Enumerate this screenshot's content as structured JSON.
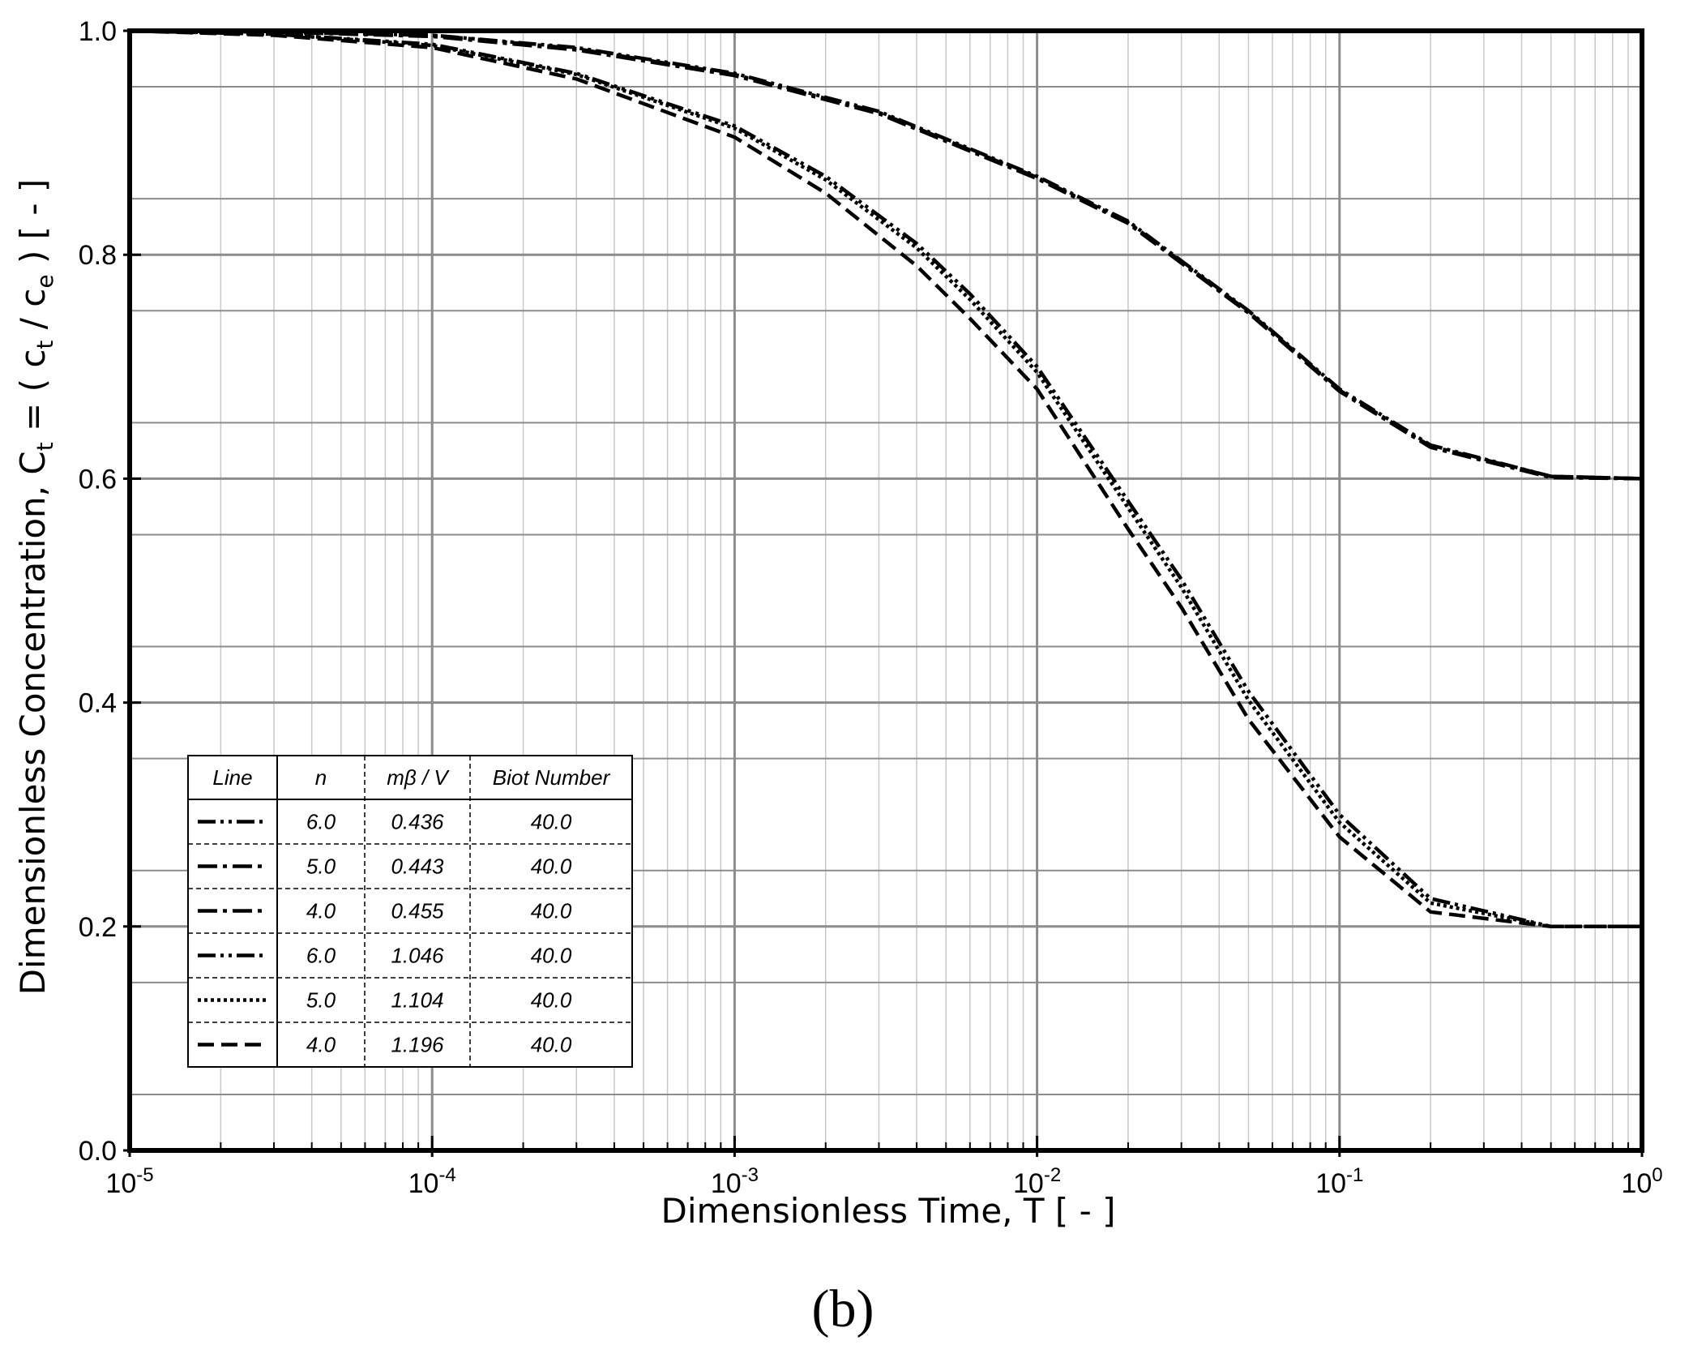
{
  "chart_data": {
    "type": "line",
    "panel_label": "(b)",
    "xlabel": "Dimensionless Time, T  [ - ]",
    "ylabel_parts": {
      "pre": "Dimensionless Concentration, C",
      "sub1": "t",
      "mid1": " = ( c",
      "sub2": "t",
      "mid2": " / c",
      "sub3": "e",
      "post": " )  [ - ]"
    },
    "x_scale": "log",
    "xlim": [
      1e-05,
      1
    ],
    "ylim": [
      0.0,
      1.0
    ],
    "grid": true,
    "x_ticks": [
      {
        "value": 1e-05,
        "base": "10",
        "exp": "-5"
      },
      {
        "value": 0.0001,
        "base": "10",
        "exp": "-4"
      },
      {
        "value": 0.001,
        "base": "10",
        "exp": "-3"
      },
      {
        "value": 0.01,
        "base": "10",
        "exp": "-2"
      },
      {
        "value": 0.1,
        "base": "10",
        "exp": "-1"
      },
      {
        "value": 1,
        "base": "10",
        "exp": "0"
      }
    ],
    "y_ticks": [
      "0.0",
      "0.2",
      "0.4",
      "0.6",
      "0.8",
      "1.0"
    ],
    "y_tick_values": [
      0.0,
      0.2,
      0.4,
      0.6,
      0.8,
      1.0
    ],
    "legend": {
      "placement": "lower-left",
      "headers": [
        "Line",
        "n",
        "mβ / V",
        "Biot Number"
      ],
      "rows": [
        {
          "style": "dash-dot-dot",
          "n": "6.0",
          "mbv": "0.436",
          "biot": "40.0"
        },
        {
          "style": "dash-dot",
          "n": "5.0",
          "mbv": "0.443",
          "biot": "40.0"
        },
        {
          "style": "dash-dot",
          "n": "4.0",
          "mbv": "0.455",
          "biot": "40.0"
        },
        {
          "style": "dash-dot-dot",
          "n": "6.0",
          "mbv": "1.046",
          "biot": "40.0"
        },
        {
          "style": "dotted",
          "n": "5.0",
          "mbv": "1.104",
          "biot": "40.0"
        },
        {
          "style": "dashed",
          "n": "4.0",
          "mbv": "1.196",
          "biot": "40.0"
        }
      ]
    },
    "series": [
      {
        "style": "dash-dot-dot",
        "x": [
          1e-05,
          3e-05,
          0.0001,
          0.0003,
          0.001,
          0.003,
          0.01,
          0.02,
          0.05,
          0.1,
          0.2,
          0.5,
          1
        ],
        "y": [
          1.0,
          0.999,
          0.996,
          0.985,
          0.962,
          0.928,
          0.87,
          0.83,
          0.75,
          0.68,
          0.63,
          0.602,
          0.6
        ]
      },
      {
        "style": "dash-dot",
        "x": [
          1e-05,
          3e-05,
          0.0001,
          0.0003,
          0.001,
          0.003,
          0.01,
          0.02,
          0.05,
          0.1,
          0.2,
          0.5,
          1
        ],
        "y": [
          1.0,
          0.999,
          0.996,
          0.984,
          0.961,
          0.927,
          0.869,
          0.829,
          0.749,
          0.679,
          0.629,
          0.602,
          0.6
        ]
      },
      {
        "style": "dash-dot",
        "x": [
          1e-05,
          3e-05,
          0.0001,
          0.0003,
          0.001,
          0.003,
          0.01,
          0.02,
          0.05,
          0.1,
          0.2,
          0.5,
          1
        ],
        "y": [
          1.0,
          0.999,
          0.995,
          0.983,
          0.96,
          0.926,
          0.868,
          0.828,
          0.748,
          0.678,
          0.628,
          0.601,
          0.6
        ]
      },
      {
        "style": "dash-dot-dot",
        "x": [
          1e-05,
          3e-05,
          0.0001,
          0.0003,
          0.001,
          0.002,
          0.004,
          0.006,
          0.01,
          0.02,
          0.03,
          0.05,
          0.1,
          0.2,
          0.5,
          1
        ],
        "y": [
          1.0,
          0.997,
          0.988,
          0.962,
          0.915,
          0.87,
          0.81,
          0.765,
          0.7,
          0.58,
          0.51,
          0.41,
          0.3,
          0.225,
          0.2,
          0.2
        ]
      },
      {
        "style": "dotted",
        "x": [
          1e-05,
          3e-05,
          0.0001,
          0.0003,
          0.001,
          0.002,
          0.004,
          0.006,
          0.01,
          0.02,
          0.03,
          0.05,
          0.1,
          0.2,
          0.5,
          1
        ],
        "y": [
          1.0,
          0.997,
          0.987,
          0.961,
          0.913,
          0.867,
          0.806,
          0.76,
          0.695,
          0.574,
          0.503,
          0.402,
          0.293,
          0.221,
          0.2,
          0.2
        ]
      },
      {
        "style": "dashed",
        "x": [
          1e-05,
          3e-05,
          0.0001,
          0.0003,
          0.001,
          0.002,
          0.004,
          0.006,
          0.01,
          0.02,
          0.03,
          0.05,
          0.1,
          0.2,
          0.5,
          1
        ],
        "y": [
          1.0,
          0.996,
          0.985,
          0.957,
          0.905,
          0.855,
          0.79,
          0.743,
          0.68,
          0.555,
          0.485,
          0.385,
          0.28,
          0.213,
          0.2,
          0.2
        ]
      }
    ]
  }
}
